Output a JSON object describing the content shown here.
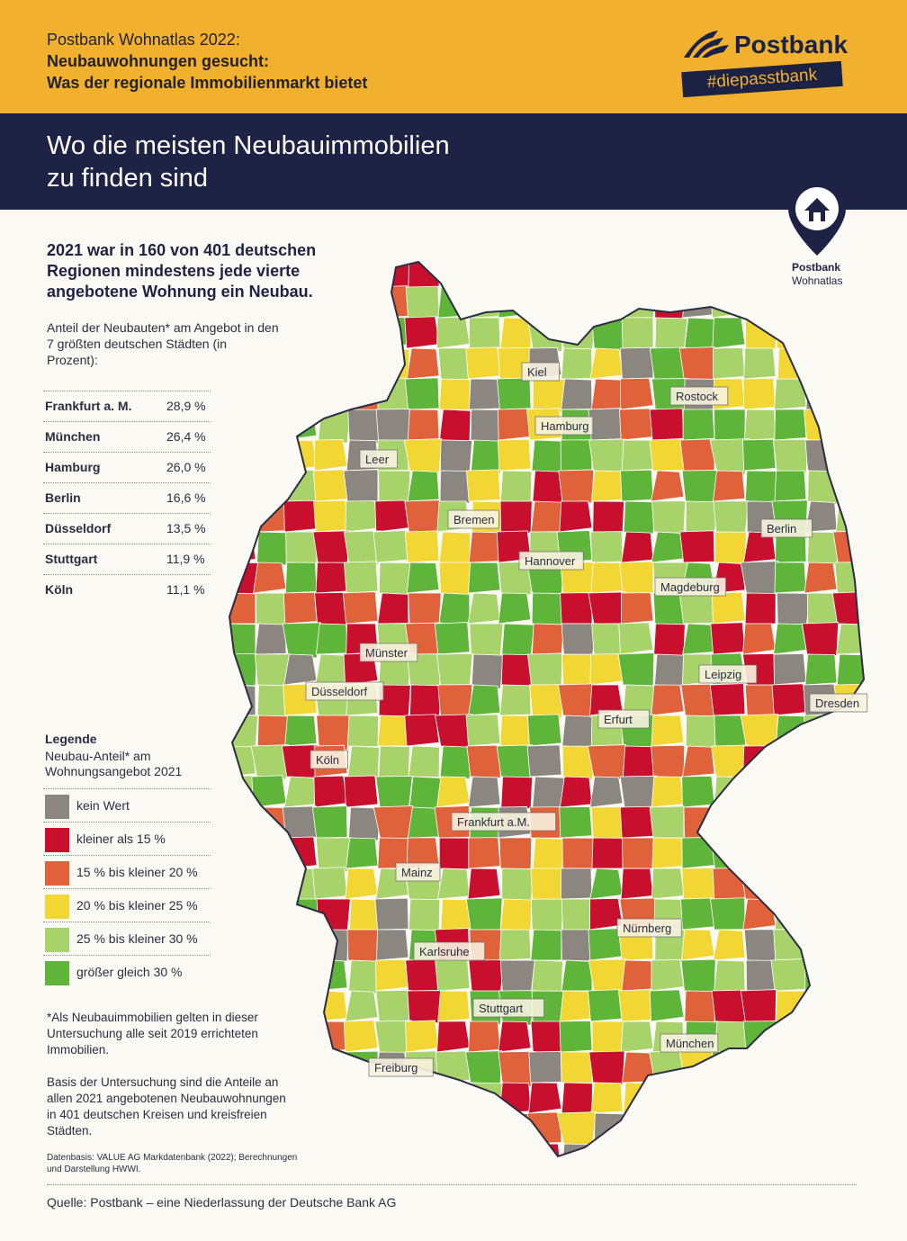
{
  "header": {
    "pretitle": "Postbank Wohnatlas 2022:",
    "headline1": "Neubauwohnungen gesucht:",
    "headline2": "Was der regionale Immobilienmarkt bietet",
    "brand_name": "Postbank",
    "brand_tag": "#diepasstbank"
  },
  "banner": {
    "title_line1": "Wo die meisten Neubauimmobilien",
    "title_line2": "zu finden sind"
  },
  "badge": {
    "title": "Postbank",
    "subtitle": "Wohnatlas"
  },
  "lead": "2021 war in 160 von 401 deutschen Regionen mindestens jede vierte angebotene Wohnung ein Neubau.",
  "subheading": "Anteil der Neubauten* am Angebot in den 7 größten deutschen Städten (in Prozent):",
  "cities_table": [
    {
      "city": "Frankfurt a. M.",
      "value": "28,9 %"
    },
    {
      "city": "München",
      "value": "26,4 %"
    },
    {
      "city": "Hamburg",
      "value": "26,0 %"
    },
    {
      "city": "Berlin",
      "value": "16,6 %"
    },
    {
      "city": "Düsseldorf",
      "value": "13,5 %"
    },
    {
      "city": "Stuttgart",
      "value": "11,9 %"
    },
    {
      "city": "Köln",
      "value": "11,1 %"
    }
  ],
  "legend": {
    "title": "Legende",
    "subtitle": "Neubau-Anteil* am Wohnungsangebot 2021",
    "items": [
      {
        "label": "kein Wert",
        "color": "#8c8681"
      },
      {
        "label": "kleiner als 15 %",
        "color": "#c8102e"
      },
      {
        "label": "15 % bis kleiner 20 %",
        "color": "#e0623a"
      },
      {
        "label": "20 % bis kleiner 25 %",
        "color": "#f2d633"
      },
      {
        "label": "25 % bis kleiner 30 %",
        "color": "#a8d26a"
      },
      {
        "label": "größer gleich 30 %",
        "color": "#5fb53a"
      }
    ]
  },
  "note": "*Als Neubauimmobilien gelten in dieser Untersuchung alle seit 2019 errichteten Immobilien.",
  "basis": "Basis der Untersuchung sind die Anteile an allen 2021 angebotenen Neubauwohnungen in 401 deutschen Kreisen und kreisfreien Städten.",
  "datenbasis": "Datenbasis: VALUE AG Markdatenbank (2022); Berechnungen und Darstellung HWWI.",
  "source": "Quelle: Postbank – eine Niederlassung der Deutsche Bank AG",
  "map_labels": [
    "Kiel",
    "Rostock",
    "Hamburg",
    "Leer",
    "Bremen",
    "Berlin",
    "Hannover",
    "Magdeburg",
    "Münster",
    "Düsseldorf",
    "Leipzig",
    "Dresden",
    "Erfurt",
    "Köln",
    "Frankfurt a.M.",
    "Mainz",
    "Nürnberg",
    "Karlsruhe",
    "Stuttgart",
    "München",
    "Freiburg"
  ]
}
